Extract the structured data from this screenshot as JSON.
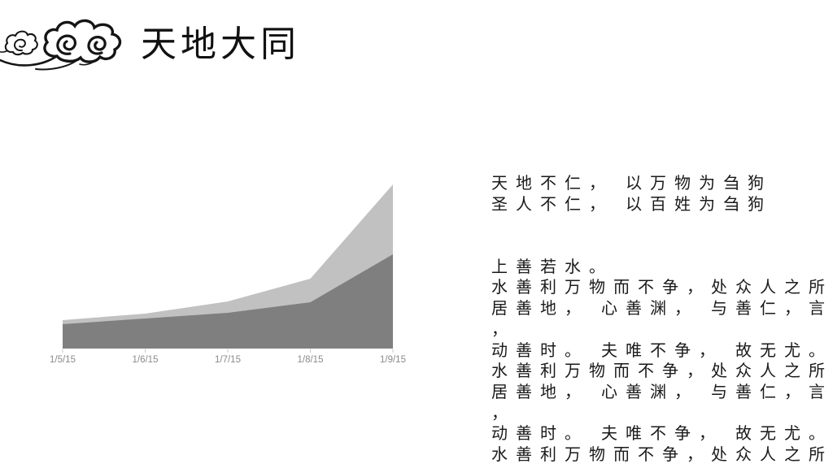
{
  "slide": {
    "title": "天地大同",
    "logo_name": "auspicious-clouds"
  },
  "chart_data": {
    "type": "area",
    "title": "",
    "xlabel": "",
    "ylabel": "",
    "categories": [
      "1/5/15",
      "1/6/15",
      "1/7/15",
      "1/8/15",
      "1/9/15"
    ],
    "series": [
      {
        "name": "upper-light-area-total",
        "color": "#c1c1c1",
        "values": [
          35,
          43,
          58,
          86,
          202
        ]
      },
      {
        "name": "lower-dark-area",
        "color": "#7f7f7f",
        "values": [
          30,
          37,
          44,
          57,
          116
        ]
      }
    ],
    "note": "values estimated in pixels above baseline; no y-axis shown; light series drawn behind dark (totals)",
    "ylim": [
      0,
      215
    ],
    "grid": false,
    "legend": "none",
    "axis_label_color": "#8a8a8a",
    "tick_color": "#c9c9c9"
  },
  "body_text": {
    "lines": [
      "天地不仁， 以万物为刍狗",
      "圣人不仁， 以百姓为刍狗",
      "",
      "",
      "上善若水。",
      "水善利万物而不争，处众人之所",
      "居善地， 心善渊， 与善仁，言善",
      "，",
      "动善时。 夫唯不争， 故无尤。",
      "水善利万物而不争，处众人之所",
      "居善地， 心善渊， 与善仁，言善",
      "，",
      "动善时。 夫唯不争， 故无尤。",
      "水善利万物而不争，处众人之所"
    ]
  }
}
